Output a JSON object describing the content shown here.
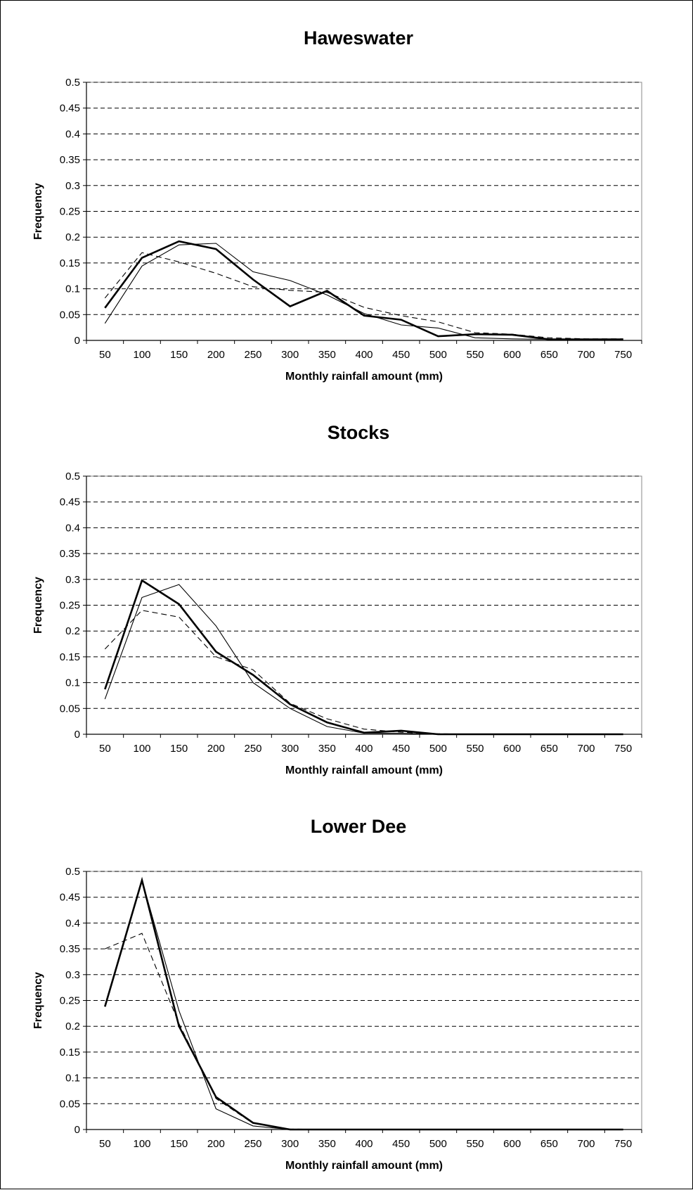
{
  "chart_data": [
    {
      "type": "line",
      "title": "Haweswater",
      "xlabel": "Monthly rainfall amount (mm)",
      "ylabel": "Frequency",
      "categories": [
        "50",
        "100",
        "150",
        "200",
        "250",
        "300",
        "350",
        "400",
        "450",
        "500",
        "550",
        "600",
        "650",
        "700",
        "750"
      ],
      "yticks": [
        "0",
        "0.05",
        "0.1",
        "0.15",
        "0.2",
        "0.25",
        "0.3",
        "0.35",
        "0.4",
        "0.45",
        "0.5"
      ],
      "ylim": [
        0,
        0.5
      ],
      "grid": "horizontal dashed",
      "series": [
        {
          "style": "thick",
          "values": [
            0.063,
            0.16,
            0.192,
            0.177,
            0.118,
            0.066,
            0.096,
            0.048,
            0.04,
            0.008,
            0.012,
            0.011,
            0.002,
            0.002,
            0.002
          ]
        },
        {
          "style": "thin",
          "values": [
            0.033,
            0.144,
            0.185,
            0.188,
            0.133,
            0.116,
            0.088,
            0.052,
            0.03,
            0.024,
            0.005,
            0.003,
            0.002,
            0.001,
            0.001
          ]
        },
        {
          "style": "dashed",
          "values": [
            0.082,
            0.17,
            0.152,
            0.13,
            0.104,
            0.097,
            0.093,
            0.064,
            0.048,
            0.036,
            0.015,
            0.012,
            0.005,
            0.003,
            0.003
          ]
        }
      ]
    },
    {
      "type": "line",
      "title": "Stocks",
      "xlabel": "Monthly rainfall amount (mm)",
      "ylabel": "Frequency",
      "categories": [
        "50",
        "100",
        "150",
        "200",
        "250",
        "300",
        "350",
        "400",
        "450",
        "500",
        "550",
        "600",
        "650",
        "700",
        "750"
      ],
      "yticks": [
        "0",
        "0.05",
        "0.1",
        "0.15",
        "0.2",
        "0.25",
        "0.3",
        "0.35",
        "0.4",
        "0.45",
        "0.5"
      ],
      "ylim": [
        0,
        0.5
      ],
      "grid": "horizontal dashed",
      "series": [
        {
          "style": "thick",
          "values": [
            0.087,
            0.298,
            0.252,
            0.16,
            0.115,
            0.058,
            0.023,
            0.003,
            0.007,
            0.0,
            0.0,
            0.0,
            0.0,
            0.0,
            0.0
          ]
        },
        {
          "style": "thin",
          "values": [
            0.068,
            0.265,
            0.29,
            0.21,
            0.1,
            0.05,
            0.015,
            0.002,
            0.002,
            0.0,
            0.0,
            0.0,
            0.0,
            0.0,
            0.0
          ]
        },
        {
          "style": "dashed",
          "values": [
            0.165,
            0.24,
            0.227,
            0.15,
            0.125,
            0.06,
            0.03,
            0.01,
            0.004,
            0.001,
            0.0,
            0.0,
            0.0,
            0.0,
            0.0
          ]
        }
      ]
    },
    {
      "type": "line",
      "title": "Lower Dee",
      "xlabel": "Monthly rainfall amount (mm)",
      "ylabel": "Frequency",
      "categories": [
        "50",
        "100",
        "150",
        "200",
        "250",
        "300",
        "350",
        "400",
        "450",
        "500",
        "550",
        "600",
        "650",
        "700",
        "750"
      ],
      "yticks": [
        "0",
        "0.05",
        "0.1",
        "0.15",
        "0.2",
        "0.25",
        "0.3",
        "0.35",
        "0.4",
        "0.45",
        "0.5"
      ],
      "ylim": [
        0,
        0.5
      ],
      "grid": "horizontal dashed",
      "series": [
        {
          "style": "thick",
          "values": [
            0.238,
            0.483,
            0.2,
            0.063,
            0.013,
            0.0,
            0.0,
            0.0,
            0.0,
            0.0,
            0.0,
            0.0,
            0.0,
            0.0,
            0.0
          ]
        },
        {
          "style": "thin",
          "values": [
            0.238,
            0.483,
            0.23,
            0.04,
            0.007,
            0.0,
            0.0,
            0.0,
            0.0,
            0.0,
            0.0,
            0.0,
            0.0,
            0.0,
            0.0
          ]
        },
        {
          "style": "dashed",
          "values": [
            0.35,
            0.38,
            0.205,
            0.06,
            0.012,
            0.001,
            0.0,
            0.0,
            0.0,
            0.0,
            0.0,
            0.0,
            0.0,
            0.0,
            0.0
          ]
        }
      ]
    }
  ]
}
